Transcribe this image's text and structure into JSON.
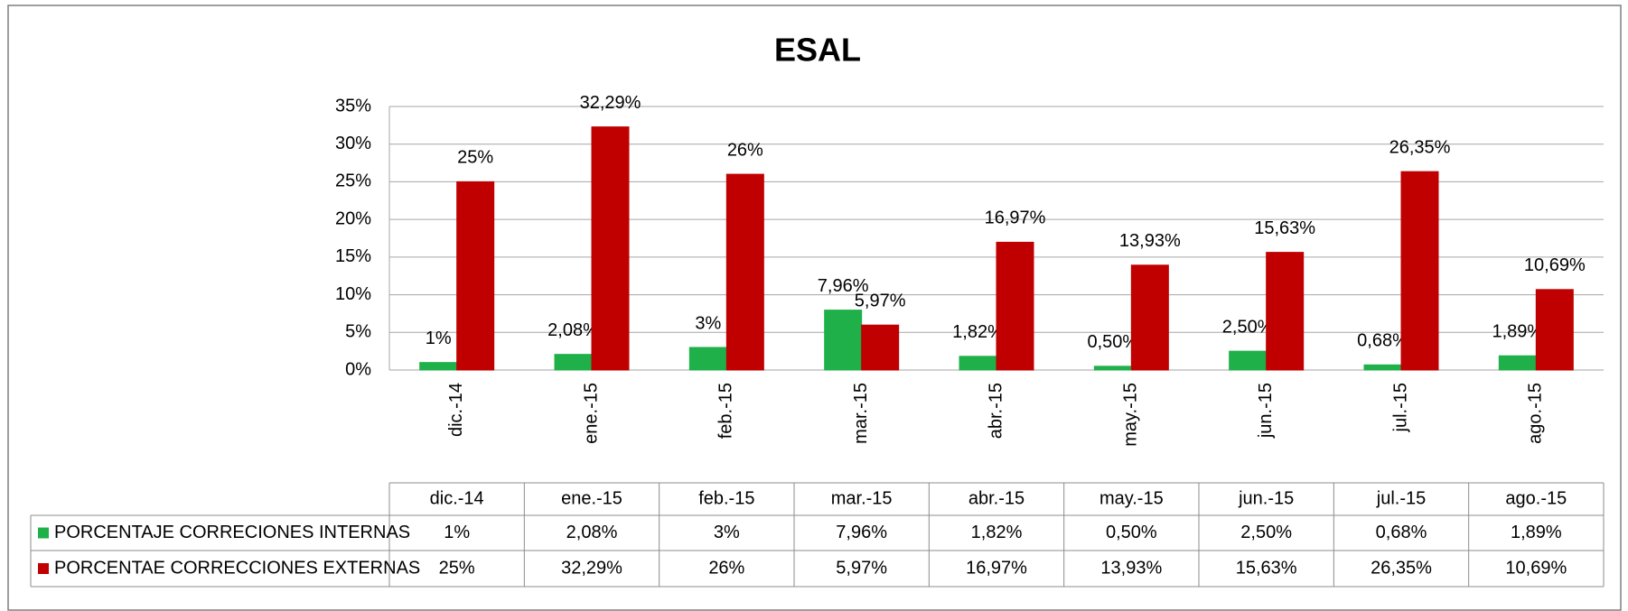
{
  "chart_data": {
    "type": "bar",
    "title": "ESAL",
    "categories": [
      "dic.-14",
      "ene.-15",
      "feb.-15",
      "mar.-15",
      "abr.-15",
      "may.-15",
      "jun.-15",
      "jul.-15",
      "ago.-15"
    ],
    "series": [
      {
        "name": "PORCENTAJE CORRECIONES INTERNAS",
        "color": "#1fb04a",
        "values": [
          1,
          2.08,
          3,
          7.96,
          1.82,
          0.5,
          2.5,
          0.68,
          1.89
        ],
        "value_labels": [
          "1%",
          "2,08%",
          "3%",
          "7,96%",
          "1,82%",
          "0,50%",
          "2,50%",
          "0,68%",
          "1,89%"
        ]
      },
      {
        "name": "PORCENTAE CORRECCIONES EXTERNAS",
        "color": "#c00000",
        "values": [
          25,
          32.29,
          26,
          5.97,
          16.97,
          13.93,
          15.63,
          26.35,
          10.69
        ],
        "value_labels": [
          "25%",
          "32,29%",
          "26%",
          "5,97%",
          "16,97%",
          "13,93%",
          "15,63%",
          "26,35%",
          "10,69%"
        ]
      }
    ],
    "ylim": [
      0,
      35
    ],
    "yticks": [
      {
        "value": 0,
        "label": "0%"
      },
      {
        "value": 5,
        "label": "5%"
      },
      {
        "value": 10,
        "label": "10%"
      },
      {
        "value": 15,
        "label": "15%"
      },
      {
        "value": 20,
        "label": "20%"
      },
      {
        "value": 25,
        "label": "25%"
      },
      {
        "value": 30,
        "label": "30%"
      },
      {
        "value": 35,
        "label": "35%"
      }
    ],
    "grid": true,
    "data_table": true
  }
}
